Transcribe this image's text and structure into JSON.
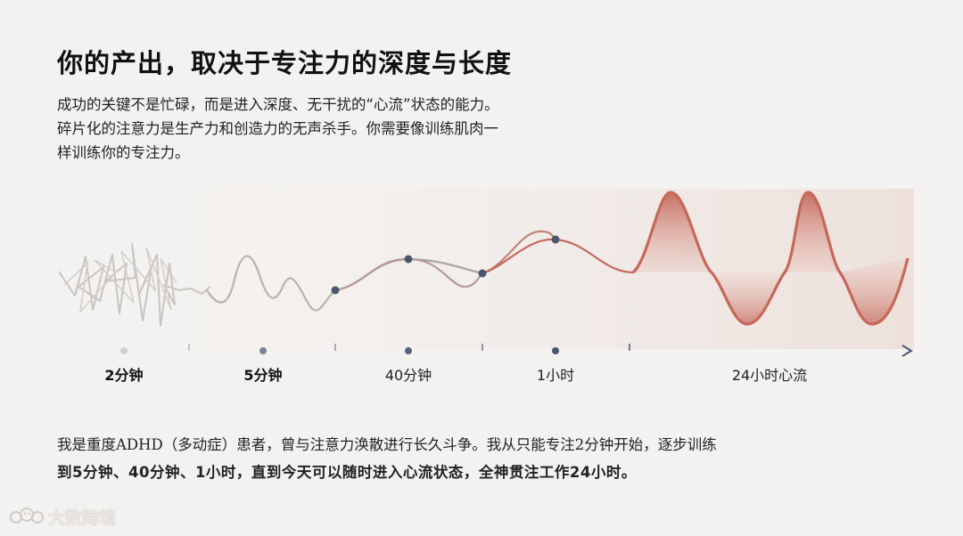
{
  "title": "你的产出，取决于专注力的深度与长度",
  "intro": {
    "line1": "成功的关键不是忙碌，而是进入深度、无干扰的“心流”状态的能力。",
    "line2": "碎片化的注意力是生产力和创造力的无声杀手。你需要像训练肌肉一",
    "line3": "样训练你的专注力。"
  },
  "timeline": {
    "stages": [
      {
        "label": "2分钟",
        "bold": true
      },
      {
        "label": "5分钟",
        "bold": true
      },
      {
        "label": "40分钟",
        "bold": false
      },
      {
        "label": "1小时",
        "bold": false
      },
      {
        "label": "24小时心流",
        "bold": false
      }
    ]
  },
  "story": {
    "line1": "我是重度ADHD（多动症）患者，曾与注意力涣散进行长久斗争。我从只能专注2分钟开始，逐步训练",
    "line2": "到5分钟、40分钟、1小时，直到今天可以随时进入心流状态，全神贯注工作24小时。"
  },
  "watermark": {
    "text": "大数跨境",
    "icon": "bear-logo-icon"
  },
  "colors": {
    "accent": "#c5685a",
    "axis": "#4a5570",
    "gray_wave": "#b4b0ad"
  }
}
